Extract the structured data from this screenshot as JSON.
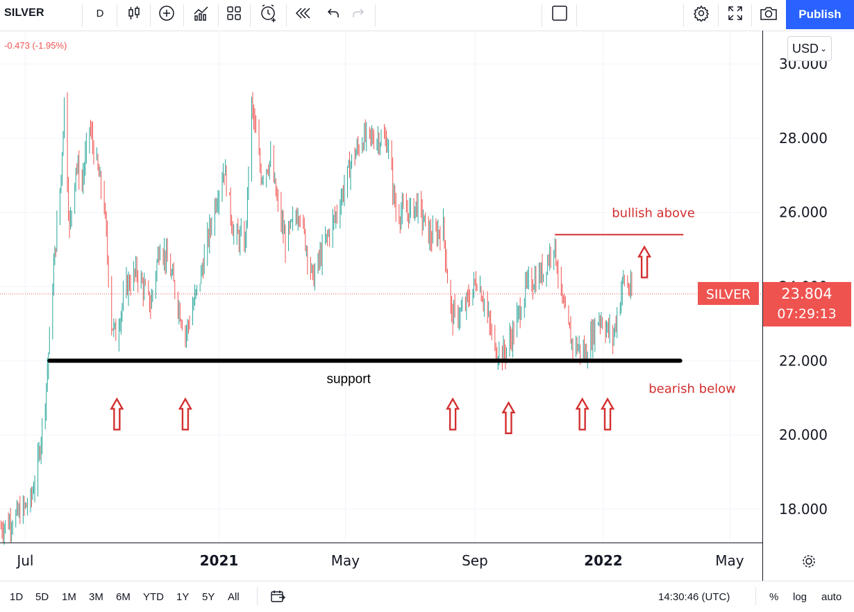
{
  "toolbar": {
    "symbol": "SILVER",
    "interval": "D",
    "publish_label": "Publish",
    "icons": [
      "bar-style-icon",
      "add-indicator-icon",
      "indicators-icon",
      "layouts-icon",
      "alert-icon",
      "replay-icon",
      "undo-icon",
      "redo-icon",
      "fullscreen-square-icon",
      "settings-icon",
      "fullscreen-icon",
      "snapshot-icon"
    ]
  },
  "header": {
    "change_text": "-0.473 (-1.95%)",
    "currency": "USD"
  },
  "chart_data": {
    "type": "candlestick",
    "symbol": "SILVER",
    "ylim": [
      17.1,
      30.9
    ],
    "y_ticks": [
      18,
      20,
      22,
      24,
      26,
      28,
      30
    ],
    "y_tick_labels": [
      "18.000",
      "20.000",
      "22.000",
      "24.000",
      "26.000",
      "28.000",
      "30.000"
    ],
    "x_range": [
      "2020-06-07",
      "2022-06-01"
    ],
    "x_ticks": [
      {
        "date": "2020-07-01",
        "label": "Jul",
        "bold": false
      },
      {
        "date": "2021-01-01",
        "label": "2021",
        "bold": true
      },
      {
        "date": "2021-05-01",
        "label": "May",
        "bold": false
      },
      {
        "date": "2021-09-01",
        "label": "Sep",
        "bold": false
      },
      {
        "date": "2022-01-01",
        "label": "2022",
        "bold": true
      },
      {
        "date": "2022-05-01",
        "label": "May",
        "bold": false
      }
    ],
    "price_path": [
      [
        "2020-06-08",
        17.5
      ],
      [
        "2020-06-22",
        17.8
      ],
      [
        "2020-07-06",
        18.2
      ],
      [
        "2020-07-13",
        19.2
      ],
      [
        "2020-07-20",
        21.0
      ],
      [
        "2020-07-24",
        22.6
      ],
      [
        "2020-07-28",
        24.5
      ],
      [
        "2020-08-04",
        27.0
      ],
      [
        "2020-08-07",
        29.0
      ],
      [
        "2020-08-12",
        25.5
      ],
      [
        "2020-08-18",
        27.3
      ],
      [
        "2020-08-24",
        26.8
      ],
      [
        "2020-08-31",
        28.3
      ],
      [
        "2020-09-08",
        27.1
      ],
      [
        "2020-09-14",
        26.2
      ],
      [
        "2020-09-21",
        23.0
      ],
      [
        "2020-09-25",
        22.7
      ],
      [
        "2020-10-05",
        24.0
      ],
      [
        "2020-10-15",
        24.4
      ],
      [
        "2020-10-28",
        23.5
      ],
      [
        "2020-11-06",
        25.2
      ],
      [
        "2020-11-16",
        24.4
      ],
      [
        "2020-11-30",
        22.7
      ],
      [
        "2020-12-14",
        24.2
      ],
      [
        "2020-12-28",
        26.2
      ],
      [
        "2021-01-06",
        27.2
      ],
      [
        "2021-01-15",
        25.4
      ],
      [
        "2021-01-26",
        25.2
      ],
      [
        "2021-02-01",
        28.9
      ],
      [
        "2021-02-10",
        27.0
      ],
      [
        "2021-02-19",
        27.4
      ],
      [
        "2021-02-25",
        26.3
      ],
      [
        "2021-03-05",
        25.2
      ],
      [
        "2021-03-18",
        26.1
      ],
      [
        "2021-03-31",
        24.2
      ],
      [
        "2021-04-12",
        25.2
      ],
      [
        "2021-04-23",
        26.0
      ],
      [
        "2021-05-07",
        27.4
      ],
      [
        "2021-05-18",
        28.0
      ],
      [
        "2021-06-01",
        28.0
      ],
      [
        "2021-06-10",
        27.9
      ],
      [
        "2021-06-18",
        26.0
      ],
      [
        "2021-06-30",
        26.0
      ],
      [
        "2021-07-08",
        26.2
      ],
      [
        "2021-07-21",
        25.3
      ],
      [
        "2021-08-02",
        25.6
      ],
      [
        "2021-08-06",
        24.2
      ],
      [
        "2021-08-10",
        23.2
      ],
      [
        "2021-08-20",
        23.3
      ],
      [
        "2021-09-03",
        24.2
      ],
      [
        "2021-09-10",
        23.6
      ],
      [
        "2021-09-20",
        22.3
      ],
      [
        "2021-09-29",
        22.2
      ],
      [
        "2021-10-08",
        22.8
      ],
      [
        "2021-10-20",
        24.0
      ],
      [
        "2021-11-05",
        24.4
      ],
      [
        "2021-11-15",
        25.2
      ],
      [
        "2021-11-24",
        23.4
      ],
      [
        "2021-12-02",
        22.5
      ],
      [
        "2021-12-15",
        22.2
      ],
      [
        "2021-12-28",
        23.2
      ],
      [
        "2022-01-10",
        22.6
      ],
      [
        "2022-01-20",
        24.2
      ],
      [
        "2022-01-28",
        23.8
      ]
    ],
    "support": {
      "level": 22.0,
      "from": "2020-07-24",
      "to": "2022-03-15",
      "label": "support"
    },
    "resistance": {
      "level": 25.4,
      "from": "2021-11-16",
      "to": "2022-03-18",
      "label": "bullish above"
    },
    "bearish_label": "bearish below",
    "arrows": [
      {
        "date": "2020-09-26",
        "price": 20.5
      },
      {
        "date": "2020-11-30",
        "price": 20.5
      },
      {
        "date": "2021-08-11",
        "price": 20.5
      },
      {
        "date": "2021-10-03",
        "price": 20.4
      },
      {
        "date": "2021-12-12",
        "price": 20.5
      },
      {
        "date": "2022-01-05",
        "price": 20.5
      },
      {
        "date": "2022-02-09",
        "price": 24.6
      }
    ],
    "last_price": 23.804,
    "last_price_label": "23.804",
    "countdown_label": "07:29:13",
    "series_tag": "SILVER",
    "colors": {
      "up": "#26a69a",
      "down": "#ef5350",
      "annotation": "#d32f2f",
      "support": "#000000",
      "grid": "#f0f3fa"
    }
  },
  "bottombar": {
    "ranges": [
      "1D",
      "5D",
      "1M",
      "3M",
      "6M",
      "YTD",
      "1Y",
      "5Y",
      "All"
    ],
    "time": "14:30:46 (UTC)",
    "percent_label": "%",
    "log_label": "log",
    "auto_label": "auto"
  }
}
